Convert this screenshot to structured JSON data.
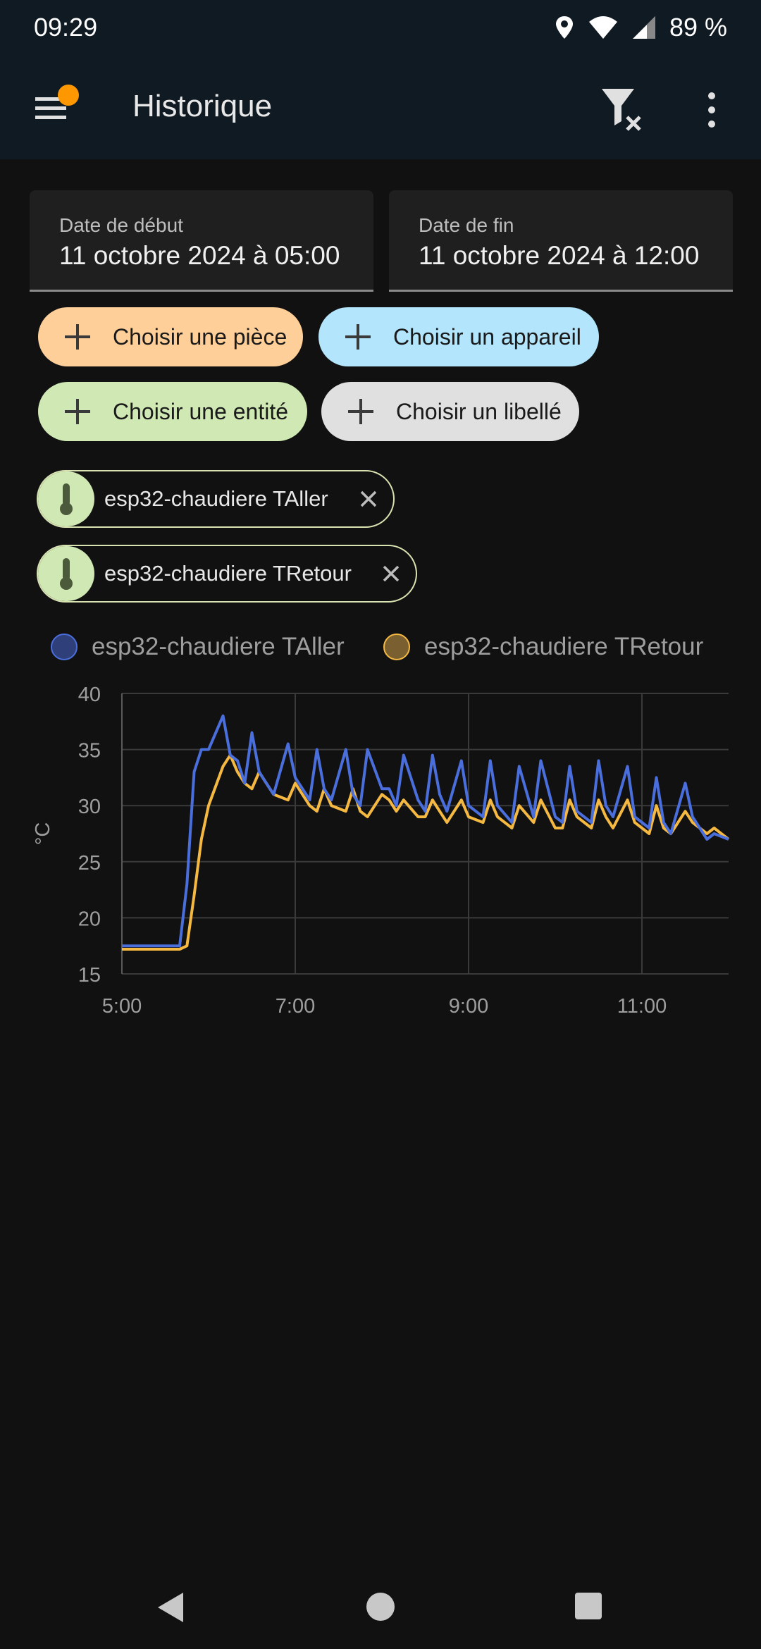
{
  "status": {
    "time": "09:29",
    "battery": "89 %"
  },
  "app_bar": {
    "title": "Historique",
    "menu_icon": "menu-icon",
    "filter_icon": "filter-clear-icon",
    "more_icon": "more-vert-icon",
    "badge_color": "#ff9800"
  },
  "date_range": {
    "start": {
      "label": "Date de début",
      "value": "11 octobre 2024 à 05:00"
    },
    "end": {
      "label": "Date de fin",
      "value": "11 octobre 2024 à 12:00"
    }
  },
  "pickers": {
    "area": "Choisir une pièce",
    "device": "Choisir un appareil",
    "entity": "Choisir une entité",
    "label": "Choisir un libellé"
  },
  "selected_entities": [
    {
      "name": "esp32-chaudiere TAller",
      "icon": "thermometer-icon"
    },
    {
      "name": "esp32-chaudiere TRetour",
      "icon": "thermometer-icon"
    }
  ],
  "chart_data": {
    "type": "line",
    "xlabel": "",
    "ylabel": "°C",
    "ylim": [
      15,
      40
    ],
    "xlim": [
      "5:00",
      "12:00"
    ],
    "y_ticks": [
      "15",
      "20",
      "25",
      "30",
      "35",
      "40"
    ],
    "x_ticks": [
      "5:00",
      "7:00",
      "9:00",
      "11:00"
    ],
    "grid": true,
    "legend": "top",
    "series": [
      {
        "name": "esp32-chaudiere TAller",
        "color": "#4a6fdc",
        "x": [
          "5:00",
          "5:40",
          "5:45",
          "5:50",
          "5:55",
          "6:00",
          "6:10",
          "6:15",
          "6:20",
          "6:25",
          "6:30",
          "6:35",
          "6:40",
          "6:45",
          "6:55",
          "7:00",
          "7:10",
          "7:15",
          "7:20",
          "7:25",
          "7:35",
          "7:40",
          "7:45",
          "7:50",
          "8:00",
          "8:05",
          "8:10",
          "8:15",
          "8:25",
          "8:30",
          "8:35",
          "8:40",
          "8:45",
          "8:55",
          "9:00",
          "9:10",
          "9:15",
          "9:20",
          "9:30",
          "9:35",
          "9:45",
          "9:50",
          "10:00",
          "10:05",
          "10:10",
          "10:15",
          "10:25",
          "10:30",
          "10:35",
          "10:40",
          "10:50",
          "10:55",
          "11:05",
          "11:10",
          "11:15",
          "11:20",
          "11:30",
          "11:35",
          "11:45",
          "11:50",
          "12:00"
        ],
        "y": [
          17.5,
          17.5,
          23,
          33,
          35,
          35,
          38,
          34.5,
          34,
          32,
          36.5,
          33,
          32,
          31,
          35.5,
          32.5,
          30.5,
          35,
          31.5,
          30.5,
          35,
          31,
          30,
          35,
          31.5,
          31.5,
          30,
          34.5,
          30.5,
          29.5,
          34.5,
          31,
          29.5,
          34,
          30,
          29,
          34,
          30,
          28.5,
          33.5,
          29,
          34,
          29,
          28.5,
          33.5,
          29.5,
          28.5,
          34,
          30,
          29,
          33.5,
          29,
          28,
          32.5,
          28.5,
          27.5,
          32,
          29,
          27,
          27.5,
          27
        ]
      },
      {
        "name": "esp32-chaudiere TRetour",
        "color": "#f5b942",
        "x": [
          "5:00",
          "5:40",
          "5:45",
          "5:50",
          "5:55",
          "6:00",
          "6:10",
          "6:15",
          "6:20",
          "6:25",
          "6:30",
          "6:35",
          "6:40",
          "6:45",
          "6:55",
          "7:00",
          "7:10",
          "7:15",
          "7:20",
          "7:25",
          "7:35",
          "7:40",
          "7:45",
          "7:50",
          "8:00",
          "8:05",
          "8:10",
          "8:15",
          "8:25",
          "8:30",
          "8:35",
          "8:40",
          "8:45",
          "8:55",
          "9:00",
          "9:10",
          "9:15",
          "9:20",
          "9:30",
          "9:35",
          "9:45",
          "9:50",
          "10:00",
          "10:05",
          "10:10",
          "10:15",
          "10:25",
          "10:30",
          "10:35",
          "10:40",
          "10:50",
          "10:55",
          "11:05",
          "11:10",
          "11:15",
          "11:20",
          "11:30",
          "11:35",
          "11:45",
          "11:50",
          "12:00"
        ],
        "y": [
          17.2,
          17.2,
          17.5,
          22,
          27,
          30,
          33.5,
          34.5,
          33,
          32,
          31.5,
          33,
          32,
          31,
          30.5,
          32,
          30,
          29.5,
          31.5,
          30,
          29.5,
          31.5,
          29.5,
          29,
          31,
          30.5,
          29.5,
          30.5,
          29,
          29,
          30.5,
          29.5,
          28.5,
          30.5,
          29,
          28.5,
          30.5,
          29,
          28,
          30,
          28.5,
          30.5,
          28,
          28,
          30.5,
          29,
          28,
          30.5,
          29,
          28,
          30.5,
          28.5,
          27.5,
          30,
          28,
          27.5,
          29.5,
          28.5,
          27.5,
          28,
          27
        ]
      }
    ]
  }
}
